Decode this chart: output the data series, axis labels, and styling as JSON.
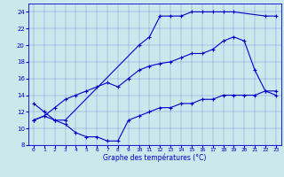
{
  "xlabel": "Graphe des températures (°C)",
  "xlim": [
    -0.5,
    23.5
  ],
  "ylim": [
    8,
    25
  ],
  "yticks": [
    8,
    10,
    12,
    14,
    16,
    18,
    20,
    22,
    24
  ],
  "xticks": [
    0,
    1,
    2,
    3,
    4,
    5,
    6,
    7,
    8,
    9,
    10,
    11,
    12,
    13,
    14,
    15,
    16,
    17,
    18,
    19,
    20,
    21,
    22,
    23
  ],
  "background_color": "#cde8ec",
  "line_color": "#0000cc",
  "curve1_x": [
    0,
    1,
    2,
    3,
    10,
    11,
    12,
    13,
    14,
    15,
    16,
    17,
    18,
    19,
    22,
    23
  ],
  "curve1_y": [
    13.0,
    12.0,
    11.0,
    11.0,
    20.0,
    21.0,
    23.5,
    23.5,
    23.5,
    24.0,
    24.0,
    24.0,
    24.0,
    24.0,
    23.5,
    23.5
  ],
  "curve2_x": [
    0,
    1,
    2,
    3,
    4,
    5,
    6,
    7,
    8,
    9,
    10,
    11,
    12,
    13,
    14,
    15,
    16,
    17,
    18,
    19,
    20,
    21,
    22,
    23
  ],
  "curve2_y": [
    11.0,
    11.5,
    12.5,
    13.5,
    14.0,
    14.5,
    15.0,
    15.5,
    15.0,
    16.0,
    17.0,
    17.5,
    17.8,
    18.0,
    18.5,
    19.0,
    19.0,
    19.5,
    20.5,
    21.0,
    20.5,
    17.0,
    14.5,
    14.0
  ],
  "curve3_x": [
    0,
    1,
    2,
    3,
    4,
    5,
    6,
    7,
    8,
    9,
    10,
    11,
    12,
    13,
    14,
    15,
    16,
    17,
    18,
    19,
    20,
    21,
    22,
    23
  ],
  "curve3_y": [
    11.0,
    11.5,
    11.0,
    10.5,
    9.5,
    9.0,
    9.0,
    8.5,
    8.5,
    11.0,
    11.5,
    12.0,
    12.5,
    12.5,
    13.0,
    13.0,
    13.5,
    13.5,
    14.0,
    14.0,
    14.0,
    14.0,
    14.5,
    14.5
  ]
}
